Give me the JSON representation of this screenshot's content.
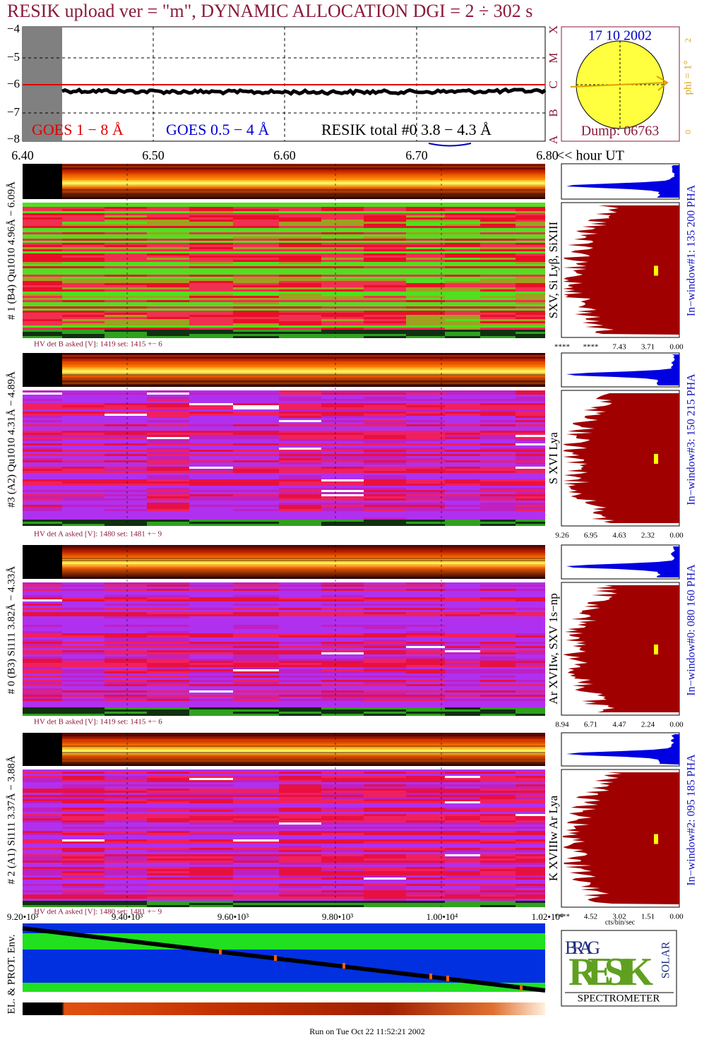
{
  "title": "RESIK upload ver = \"m\", DYNAMIC ALLOCATION  DGI =   2 ÷ 302 s",
  "goes": {
    "yticks": [
      "−4",
      "−5",
      "−6",
      "−7",
      "−8"
    ],
    "class_labels": [
      "A",
      "B",
      "C",
      "M",
      "X"
    ],
    "legend": [
      "GOES 1 − 8 Å",
      "GOES 0.5 − 4 Å",
      "RESIK total #0  3.8 − 4.3 Å"
    ]
  },
  "sun": {
    "date": "17 10 2002",
    "dump": "Dump: 06763",
    "phi": "phi =  1°",
    "scale_low": "0",
    "scale_high": "2"
  },
  "time_axis": {
    "ticks": [
      "6.40",
      "6.50",
      "6.60",
      "6.70",
      "6.80"
    ],
    "unit": "<< hour UT"
  },
  "panels": [
    {
      "label": "# 1 (B4) Qu1010 4.96Å − 6.09Å",
      "lines": "SXV, Si Lyβ, SiXIII",
      "window": "In−window#1:  135 200 PHA",
      "hv": "HV det B asked [V]:  1419 set:  1415 +−    6",
      "pha_ticks": [
        "****",
        "****",
        "7.43",
        "3.71",
        "0.00"
      ]
    },
    {
      "label": "#3 (A2) Qu1010  4.31Å − 4.89Å",
      "lines": "S XVI Lya",
      "window": "In−window#3:  150 215 PHA",
      "hv": "HV det A asked [V]:  1480 set:  1481 +−    9",
      "pha_ticks": [
        "9.26",
        "6.95",
        "4.63",
        "2.32",
        "0.00"
      ]
    },
    {
      "label": "# 0 (B3) Si111  3.82Å − 4.33Å",
      "lines": "Ar XVIIw,  SXV  1s−np",
      "window": "In−window#0:  080 160 PHA",
      "hv": "HV det B asked [V]:  1419 set:  1415 +−    6",
      "pha_ticks": [
        "8.94",
        "6.71",
        "4.47",
        "2.24",
        "0.00"
      ]
    },
    {
      "label": "# 2 (A1) Si111  3.37Å − 3.88Å",
      "lines": "K XVIIIw  Ar Lya",
      "window": "In−window#2:  095 185 PHA",
      "hv": "HV det A asked [V]:  1480 set:  1481 +−    9",
      "pha_ticks": [
        "****",
        "4.52",
        "3.02",
        "1.51",
        "0.00"
      ]
    }
  ],
  "bottom": {
    "xticks": [
      "9.20•10³",
      "9.40•10³",
      "9.60•10³",
      "9.80•10³",
      "1.00•10⁴",
      "1.02•10⁴"
    ],
    "ylabel": "EL. & PROT. Env.",
    "units": "cts/bin/sec"
  },
  "logo": {
    "brag": "BRAG",
    "resik": "RESIK",
    "solar": "SOLAR",
    "spectrometer": "SPECTROMETER"
  },
  "footer": "Run on Tue Oct 22 11:52:21 2002"
}
